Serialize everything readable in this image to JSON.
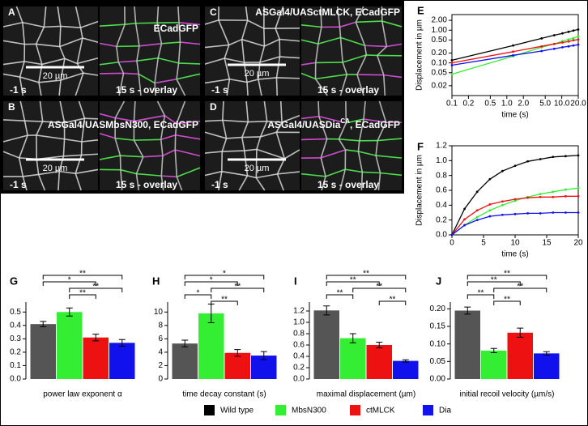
{
  "image_panels": [
    {
      "label": "A",
      "title": "ECadGFP",
      "scale": "20 µm",
      "left_time": "-1 s",
      "right_time": "15 s - overlay"
    },
    {
      "label": "C",
      "title": "ASGal4/UASctMLCK, ECadGFP",
      "scale": "20 µm",
      "left_time": "-1 s",
      "right_time": "15 s - overlay"
    },
    {
      "label": "B",
      "title": "ASGal4/UASMbsN300, ECadGFP",
      "scale": "20 µm",
      "left_time": "-1 s",
      "right_time": "15 s - overlay"
    },
    {
      "label": "D",
      "title": "ASGal4/UASDia",
      "title_sup": "CA",
      "title_end": ", ECadGFP",
      "scale": "20 µm",
      "left_time": "-1 s",
      "right_time": "15 s - overlay"
    }
  ],
  "legend": [
    {
      "name": "Wild type",
      "color": "#000000"
    },
    {
      "name": "MbsN300",
      "color": "#33ee33"
    },
    {
      "name": "ctMLCK",
      "color": "#ee1111"
    },
    {
      "name": "Dia",
      "color": "#1111ee"
    }
  ],
  "chart_data": [
    {
      "type": "line",
      "panel_label": "E",
      "xlabel": "time (s)",
      "ylabel": "Displacement in µm",
      "xlog": true,
      "ylog": true,
      "xlim": [
        0.1,
        20
      ],
      "ylim": [
        0.01,
        3
      ],
      "xticks": [
        0.1,
        0.2,
        0.5,
        {
          "value": 1,
          "label": "1.0"
        },
        {
          "value": 2,
          "label": "2.0"
        },
        {
          "value": 5,
          "label": "5.0"
        },
        {
          "value": 10,
          "label": "10.0"
        },
        {
          "value": 20,
          "label": "20.0"
        }
      ],
      "yticks": [
        0.02,
        0.05,
        {
          "value": 0.1,
          "label": "0.10"
        },
        {
          "value": 0.2,
          "label": "0.20"
        },
        {
          "value": 0.5,
          "label": "0.50"
        },
        {
          "value": 1,
          "label": "1.00"
        },
        {
          "value": 2,
          "label": "2.00"
        }
      ],
      "x": [
        0.1,
        1.3,
        4.3,
        7.3,
        10.3,
        13.3,
        16.3,
        20
      ],
      "series": [
        {
          "color": "#000000",
          "values": [
            0.12,
            0.34,
            0.56,
            0.7,
            0.8,
            0.89,
            0.97,
            1.05
          ]
        },
        {
          "color": "#33ee33",
          "values": [
            0.045,
            0.16,
            0.3,
            0.38,
            0.46,
            0.52,
            0.57,
            0.64
          ]
        },
        {
          "color": "#ee1111",
          "values": [
            0.1,
            0.22,
            0.32,
            0.38,
            0.42,
            0.45,
            0.49,
            0.52
          ]
        },
        {
          "color": "#1111ee",
          "values": [
            0.085,
            0.17,
            0.23,
            0.27,
            0.3,
            0.32,
            0.34,
            0.36
          ]
        }
      ]
    },
    {
      "type": "line",
      "panel_label": "F",
      "xlabel": "time (s)",
      "ylabel": "Displacement in µm",
      "xlim": [
        0,
        20
      ],
      "ylim": [
        0,
        1.2
      ],
      "xticks": [
        0,
        5,
        10,
        15,
        20
      ],
      "yticks": [
        {
          "value": 0,
          "label": "0.0"
        },
        0.2,
        0.4,
        0.6,
        0.8,
        {
          "value": 1,
          "label": "1.0"
        },
        1.2
      ],
      "x": [
        0,
        2,
        4,
        6,
        8,
        10,
        12,
        14,
        16,
        18,
        20
      ],
      "series": [
        {
          "color": "#000000",
          "values": [
            0,
            0.35,
            0.58,
            0.75,
            0.86,
            0.93,
            0.99,
            1.02,
            1.05,
            1.06,
            1.07
          ]
        },
        {
          "color": "#33ee33",
          "values": [
            0,
            0.13,
            0.24,
            0.33,
            0.4,
            0.46,
            0.51,
            0.55,
            0.58,
            0.61,
            0.63
          ]
        },
        {
          "color": "#ee1111",
          "values": [
            0,
            0.21,
            0.33,
            0.41,
            0.45,
            0.48,
            0.5,
            0.51,
            0.51,
            0.52,
            0.52
          ]
        },
        {
          "color": "#1111ee",
          "values": [
            0,
            0.13,
            0.2,
            0.25,
            0.27,
            0.28,
            0.29,
            0.29,
            0.3,
            0.3,
            0.3
          ]
        }
      ]
    },
    {
      "type": "bar",
      "panel_label": "G",
      "xlabel": "power law exponent α",
      "ylim": [
        0,
        0.55
      ],
      "yticks": [
        {
          "value": 0,
          "label": "0.0"
        },
        0.1,
        0.2,
        0.3,
        0.4,
        0.5
      ],
      "categories": [
        null,
        null,
        null,
        null
      ],
      "colors": [
        "#555555",
        "#33ee33",
        "#ee1111",
        "#1111ee"
      ],
      "values": [
        0.41,
        0.5,
        0.31,
        0.27
      ],
      "errors": [
        0.02,
        0.03,
        0.025,
        0.025
      ],
      "significance": [
        "**",
        "*",
        "**",
        "**"
      ]
    },
    {
      "type": "bar",
      "panel_label": "H",
      "xlabel": "time decay constant (s)",
      "ylim": [
        0,
        11
      ],
      "yticks": [
        0,
        2,
        4,
        6,
        8,
        10
      ],
      "categories": [
        null,
        null,
        null,
        null
      ],
      "colors": [
        "#555555",
        "#33ee33",
        "#ee1111",
        "#1111ee"
      ],
      "values": [
        5.3,
        9.8,
        3.9,
        3.5
      ],
      "errors": [
        0.5,
        1.4,
        0.5,
        0.6
      ],
      "significance": [
        "*",
        "*",
        "**",
        "*",
        "**"
      ]
    },
    {
      "type": "bar",
      "panel_label": "I",
      "xlabel": "maximal displacement (µm)",
      "ylim": [
        0,
        1.3
      ],
      "yticks": [
        {
          "value": 0,
          "label": "0.0"
        },
        0.2,
        0.4,
        0.6,
        0.8,
        {
          "value": 1,
          "label": "1.0"
        },
        1.2
      ],
      "categories": [
        null,
        null,
        null,
        null
      ],
      "colors": [
        "#555555",
        "#33ee33",
        "#ee1111",
        "#1111ee"
      ],
      "values": [
        1.21,
        0.72,
        0.6,
        0.32
      ],
      "errors": [
        0.08,
        0.08,
        0.05,
        0.02
      ],
      "significance": [
        "**",
        "**",
        "**",
        "**",
        "**"
      ]
    },
    {
      "type": "bar",
      "panel_label": "J",
      "xlabel": "initial recoil velocity (µm/s)",
      "ylim": [
        0,
        0.21
      ],
      "yticks": [
        {
          "value": 0,
          "label": "0.00"
        },
        0.05,
        {
          "value": 0.1,
          "label": "0.10"
        },
        0.15,
        {
          "value": 0.2,
          "label": "0.20"
        }
      ],
      "categories": [
        null,
        null,
        null,
        null
      ],
      "colors": [
        "#555555",
        "#33ee33",
        "#ee1111",
        "#1111ee"
      ],
      "values": [
        0.195,
        0.081,
        0.132,
        0.073
      ],
      "errors": [
        0.01,
        0.006,
        0.013,
        0.005
      ],
      "significance": [
        "**",
        "**",
        "**",
        "**",
        "**"
      ]
    }
  ]
}
